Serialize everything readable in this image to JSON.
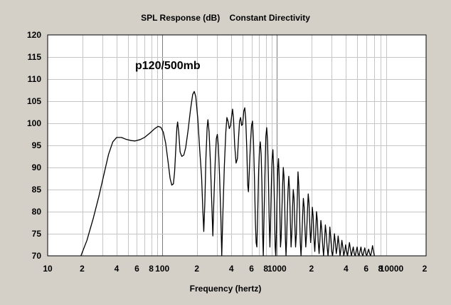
{
  "chart_data": {
    "type": "line",
    "title": "SPL Response (dB)    Constant Directivity",
    "xlabel": "Frequency (hertz)",
    "ylabel": "",
    "annotation": "p120/500mb",
    "x_scale": "log",
    "xlim": [
      10,
      20000
    ],
    "ylim": [
      70,
      120
    ],
    "grid": true,
    "y_ticks": [
      120,
      115,
      110,
      105,
      100,
      95,
      90,
      85,
      80,
      75,
      70
    ],
    "x_tick_labels": [
      {
        "value": 10,
        "label": "10"
      },
      {
        "value": 20,
        "label": "2"
      },
      {
        "value": 40,
        "label": "4"
      },
      {
        "value": 60,
        "label": "6"
      },
      {
        "value": 80,
        "label": "8"
      },
      {
        "value": 100,
        "label": "100"
      },
      {
        "value": 200,
        "label": "2"
      },
      {
        "value": 400,
        "label": "4"
      },
      {
        "value": 600,
        "label": "6"
      },
      {
        "value": 800,
        "label": "8"
      },
      {
        "value": 1000,
        "label": "1000"
      },
      {
        "value": 2000,
        "label": "2"
      },
      {
        "value": 4000,
        "label": "4"
      },
      {
        "value": 6000,
        "label": "6"
      },
      {
        "value": 8000,
        "label": "8"
      },
      {
        "value": 10000,
        "label": "10000"
      },
      {
        "value": 20000,
        "label": "2"
      }
    ],
    "series": [
      {
        "color": "#000000",
        "points": [
          [
            19.5,
            70.0
          ],
          [
            22,
            73.5
          ],
          [
            25,
            78.5
          ],
          [
            28,
            83.5
          ],
          [
            31,
            88.5
          ],
          [
            34,
            93.0
          ],
          [
            37,
            95.8
          ],
          [
            40,
            96.8
          ],
          [
            44,
            96.8
          ],
          [
            48,
            96.4
          ],
          [
            53,
            96.1
          ],
          [
            58,
            96.0
          ],
          [
            64,
            96.3
          ],
          [
            70,
            96.8
          ],
          [
            78,
            97.8
          ],
          [
            86,
            98.8
          ],
          [
            92,
            99.3
          ],
          [
            97,
            99.1
          ],
          [
            102,
            98.0
          ],
          [
            107,
            95.5
          ],
          [
            112,
            91.5
          ],
          [
            117,
            87.5
          ],
          [
            121,
            86.0
          ],
          [
            125,
            86.3
          ],
          [
            128,
            89.0
          ],
          [
            131,
            94.0
          ],
          [
            134,
            99.0
          ],
          [
            136,
            100.3
          ],
          [
            139,
            98.0
          ],
          [
            143,
            93.5
          ],
          [
            148,
            92.5
          ],
          [
            154,
            92.8
          ],
          [
            160,
            94.5
          ],
          [
            168,
            98.5
          ],
          [
            176,
            103.0
          ],
          [
            184,
            106.5
          ],
          [
            190,
            107.2
          ],
          [
            196,
            106.0
          ],
          [
            204,
            101.0
          ],
          [
            212,
            94.0
          ],
          [
            220,
            88.0
          ],
          [
            226,
            80.0
          ],
          [
            230,
            75.5
          ],
          [
            235,
            82.0
          ],
          [
            240,
            92.0
          ],
          [
            246,
            99.0
          ],
          [
            250,
            100.8
          ],
          [
            256,
            98.0
          ],
          [
            263,
            91.0
          ],
          [
            270,
            82.0
          ],
          [
            276,
            74.5
          ],
          [
            282,
            83.0
          ],
          [
            290,
            92.0
          ],
          [
            296,
            96.5
          ],
          [
            302,
            97.5
          ],
          [
            308,
            95.0
          ],
          [
            316,
            88.0
          ],
          [
            324,
            79.0
          ],
          [
            330,
            70.0
          ],
          [
            338,
            80.0
          ],
          [
            348,
            90.5
          ],
          [
            358,
            98.0
          ],
          [
            366,
            101.3
          ],
          [
            374,
            100.5
          ],
          [
            384,
            98.8
          ],
          [
            394,
            99.5
          ],
          [
            402,
            101.5
          ],
          [
            410,
            103.2
          ],
          [
            418,
            101.0
          ],
          [
            428,
            95.0
          ],
          [
            440,
            91.0
          ],
          [
            452,
            92.0
          ],
          [
            462,
            96.5
          ],
          [
            472,
            100.5
          ],
          [
            482,
            101.3
          ],
          [
            492,
            99.5
          ],
          [
            502,
            99.8
          ],
          [
            514,
            102.8
          ],
          [
            524,
            103.5
          ],
          [
            534,
            101.0
          ],
          [
            546,
            94.0
          ],
          [
            556,
            86.0
          ],
          [
            564,
            84.5
          ],
          [
            574,
            89.0
          ],
          [
            586,
            95.0
          ],
          [
            600,
            99.5
          ],
          [
            612,
            100.5
          ],
          [
            624,
            96.0
          ],
          [
            636,
            88.0
          ],
          [
            648,
            78.0
          ],
          [
            658,
            73.0
          ],
          [
            668,
            72.0
          ],
          [
            680,
            80.0
          ],
          [
            692,
            89.0
          ],
          [
            704,
            94.0
          ],
          [
            716,
            95.8
          ],
          [
            728,
            93.0
          ],
          [
            740,
            86.0
          ],
          [
            750,
            75.0
          ],
          [
            760,
            70.0
          ],
          [
            772,
            79.0
          ],
          [
            786,
            88.5
          ],
          [
            800,
            97.0
          ],
          [
            814,
            99.0
          ],
          [
            828,
            96.0
          ],
          [
            842,
            88.0
          ],
          [
            856,
            78.0
          ],
          [
            868,
            72.0
          ],
          [
            880,
            78.0
          ],
          [
            894,
            86.0
          ],
          [
            908,
            92.0
          ],
          [
            922,
            94.0
          ],
          [
            936,
            90.0
          ],
          [
            950,
            82.0
          ],
          [
            964,
            72.0
          ],
          [
            976,
            70.0
          ],
          [
            990,
            76.0
          ],
          [
            1004,
            84.0
          ],
          [
            1018,
            90.0
          ],
          [
            1032,
            92.0
          ],
          [
            1046,
            88.0
          ],
          [
            1060,
            80.0
          ],
          [
            1074,
            72.0
          ],
          [
            1088,
            74.0
          ],
          [
            1104,
            80.0
          ],
          [
            1120,
            86.0
          ],
          [
            1136,
            90.0
          ],
          [
            1152,
            88.0
          ],
          [
            1168,
            82.0
          ],
          [
            1184,
            74.0
          ],
          [
            1200,
            70.0
          ],
          [
            1216,
            74.0
          ],
          [
            1232,
            80.0
          ],
          [
            1250,
            85.0
          ],
          [
            1268,
            88.0
          ],
          [
            1288,
            85.0
          ],
          [
            1308,
            78.0
          ],
          [
            1328,
            72.0
          ],
          [
            1348,
            75.0
          ],
          [
            1368,
            81.0
          ],
          [
            1388,
            85.0
          ],
          [
            1410,
            83.0
          ],
          [
            1432,
            77.0
          ],
          [
            1454,
            72.0
          ],
          [
            1478,
            75.0
          ],
          [
            1502,
            82.0
          ],
          [
            1526,
            89.0
          ],
          [
            1550,
            86.0
          ],
          [
            1574,
            80.0
          ],
          [
            1598,
            73.0
          ],
          [
            1622,
            70.0
          ],
          [
            1648,
            74.0
          ],
          [
            1674,
            79.0
          ],
          [
            1700,
            83.0
          ],
          [
            1728,
            81.0
          ],
          [
            1756,
            76.0
          ],
          [
            1784,
            72.0
          ],
          [
            1814,
            75.0
          ],
          [
            1844,
            80.0
          ],
          [
            1874,
            84.0
          ],
          [
            1904,
            82.0
          ],
          [
            1934,
            77.0
          ],
          [
            1966,
            73.0
          ],
          [
            2000,
            76.0
          ],
          [
            2034,
            81.0
          ],
          [
            2068,
            79.0
          ],
          [
            2102,
            74.0
          ],
          [
            2138,
            71.0
          ],
          [
            2176,
            75.0
          ],
          [
            2214,
            80.0
          ],
          [
            2252,
            78.0
          ],
          [
            2292,
            73.0
          ],
          [
            2332,
            70.5
          ],
          [
            2374,
            74.0
          ],
          [
            2416,
            78.0
          ],
          [
            2460,
            76.0
          ],
          [
            2504,
            72.5
          ],
          [
            2550,
            70.0
          ],
          [
            2596,
            73.0
          ],
          [
            2644,
            77.0
          ],
          [
            2692,
            75.0
          ],
          [
            2740,
            72.0
          ],
          [
            2790,
            70.0
          ],
          [
            2842,
            72.5
          ],
          [
            2894,
            76.5
          ],
          [
            2948,
            74.0
          ],
          [
            3002,
            71.0
          ],
          [
            3058,
            70.0
          ],
          [
            3114,
            72.0
          ],
          [
            3172,
            75.0
          ],
          [
            3232,
            73.0
          ],
          [
            3292,
            70.5
          ],
          [
            3354,
            72.0
          ],
          [
            3418,
            74.5
          ],
          [
            3482,
            72.5
          ],
          [
            3548,
            70.0
          ],
          [
            3616,
            71.5
          ],
          [
            3684,
            73.5
          ],
          [
            3754,
            72.0
          ],
          [
            3826,
            70.0
          ],
          [
            3900,
            71.0
          ],
          [
            3974,
            72.5
          ],
          [
            4050,
            71.0
          ],
          [
            4128,
            70.0
          ],
          [
            4208,
            71.5
          ],
          [
            4290,
            73.0
          ],
          [
            4372,
            71.5
          ],
          [
            4456,
            70.0
          ],
          [
            4544,
            71.0
          ],
          [
            4632,
            72.0
          ],
          [
            4722,
            70.5
          ],
          [
            4814,
            70.0
          ],
          [
            4908,
            71.0
          ],
          [
            5004,
            72.0
          ],
          [
            5100,
            70.5
          ],
          [
            5200,
            70.0
          ],
          [
            5300,
            71.0
          ],
          [
            5404,
            72.0
          ],
          [
            5510,
            70.5
          ],
          [
            5618,
            70.0
          ],
          [
            5728,
            71.0
          ],
          [
            5840,
            71.8
          ],
          [
            5954,
            70.5
          ],
          [
            6070,
            70.0
          ],
          [
            6190,
            70.8
          ],
          [
            6310,
            71.5
          ],
          [
            6434,
            70.5
          ],
          [
            6560,
            70.0
          ],
          [
            6690,
            71.0
          ],
          [
            6820,
            72.3
          ],
          [
            6950,
            71.0
          ],
          [
            7080,
            70.0
          ]
        ]
      }
    ]
  }
}
